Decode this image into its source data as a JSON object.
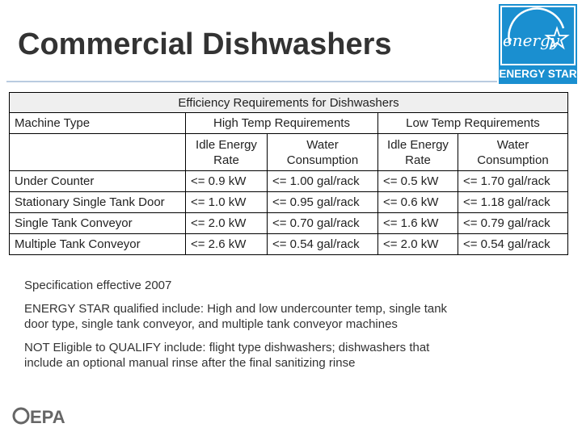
{
  "header": {
    "title": "Commercial Dishwashers"
  },
  "logo": {
    "script": "energy",
    "label": "ENERGY STAR"
  },
  "table": {
    "caption": "Efficiency Requirements for Dishwashers",
    "group_headers": [
      "Machine Type",
      "High Temp Requirements",
      "Low Temp Requirements"
    ],
    "sub_headers": [
      "Idle Energy Rate",
      "Water Consumption",
      "Idle Energy Rate",
      "Water Consumption"
    ],
    "rows": [
      [
        "Under Counter",
        "<= 0.9 kW",
        "<= 1.00 gal/rack",
        "<= 0.5 kW",
        "<= 1.70 gal/rack"
      ],
      [
        "Stationary Single Tank Door",
        "<= 1.0 kW",
        "<= 0.95 gal/rack",
        "<= 0.6 kW",
        "<= 1.18 gal/rack"
      ],
      [
        "Single Tank Conveyor",
        "<= 2.0 kW",
        "<= 0.70 gal/rack",
        "<= 1.6 kW",
        "<= 0.79 gal/rack"
      ],
      [
        "Multiple Tank Conveyor",
        "<= 2.6 kW",
        "<= 0.54 gal/rack",
        "<= 2.0 kW",
        "<= 0.54 gal/rack"
      ]
    ]
  },
  "notes": [
    "Specification effective 2007",
    "ENERGY STAR qualified include: High and low undercounter temp, single tank door type, single tank conveyor, and multiple tank conveyor machines",
    "NOT Eligible to QUALIFY include: flight type dishwashers; dishwashers that include an optional manual rinse after the final sanitizing rinse"
  ],
  "footer": {
    "logo": "EPA"
  }
}
